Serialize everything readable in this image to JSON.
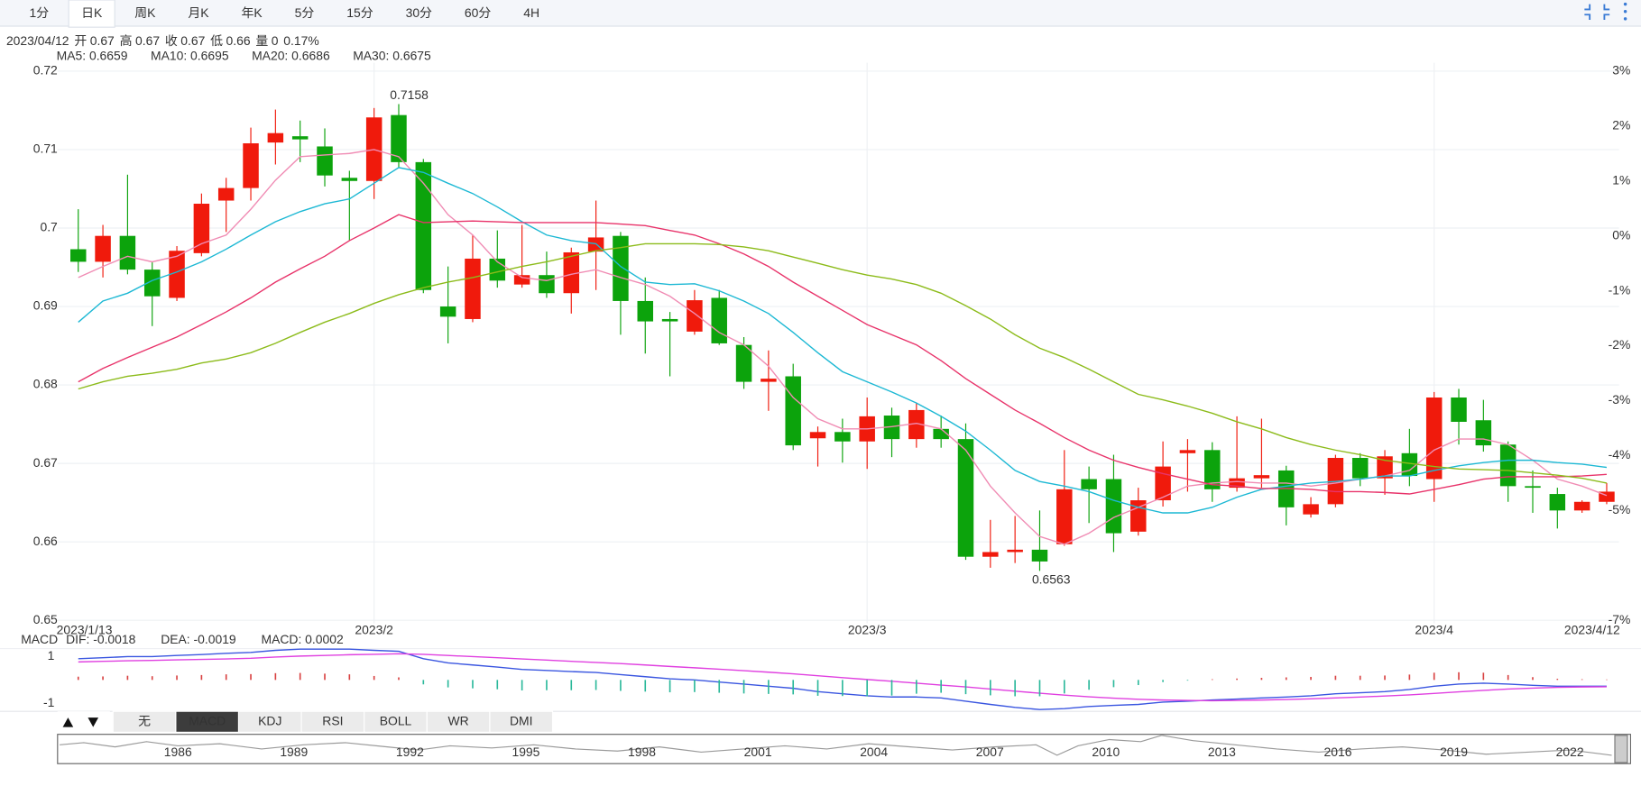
{
  "toolbar": {
    "tabs": [
      "1分",
      "日K",
      "周K",
      "月K",
      "年K",
      "5分",
      "15分",
      "30分",
      "60分",
      "4H"
    ],
    "active": 1
  },
  "info": {
    "date": "2023/04/12",
    "items": [
      {
        "label": "开",
        "value": "0.67",
        "color": "#0a9b0a"
      },
      {
        "label": "高",
        "value": "0.67",
        "color": "#e8201a"
      },
      {
        "label": "收",
        "value": "0.67",
        "color": "#e8201a"
      },
      {
        "label": "低",
        "value": "0.66",
        "color": "#0a9b0a"
      },
      {
        "label": "量",
        "value": "0",
        "color": "#333333"
      }
    ],
    "change": "0.17%",
    "change_color": "#e8201a"
  },
  "chart_data": [
    {
      "type": "candlestick",
      "categories": [
        "2023/1/13",
        null,
        null,
        null,
        null,
        null,
        null,
        null,
        null,
        null,
        null,
        null,
        "2023/2",
        null,
        null,
        null,
        null,
        null,
        null,
        null,
        null,
        null,
        null,
        null,
        null,
        null,
        null,
        null,
        null,
        null,
        null,
        null,
        "2023/3",
        null,
        null,
        null,
        null,
        null,
        null,
        null,
        null,
        null,
        null,
        null,
        null,
        null,
        null,
        null,
        null,
        null,
        null,
        null,
        null,
        null,
        null,
        "2023/4",
        null,
        null,
        null,
        null,
        null,
        null,
        "2023/4/12"
      ],
      "open": [
        0.6973,
        0.6957,
        0.699,
        0.6947,
        0.6911,
        0.6968,
        0.7035,
        0.7051,
        0.7109,
        0.7117,
        0.7104,
        0.7064,
        0.706,
        0.7144,
        0.7084,
        0.69,
        0.6884,
        0.6961,
        0.6928,
        0.694,
        0.6917,
        0.697,
        0.699,
        0.6907,
        0.6884,
        0.6868,
        0.6911,
        0.6851,
        0.6804,
        0.6811,
        0.6732,
        0.674,
        0.6728,
        0.6761,
        0.6731,
        0.6744,
        0.6731,
        0.6581,
        0.6587,
        0.659,
        0.6597,
        0.668,
        0.668,
        0.6613,
        0.6653,
        0.6713,
        0.6717,
        0.6669,
        0.6681,
        0.6691,
        0.6635,
        0.6648,
        0.6707,
        0.6681,
        0.6713,
        0.668,
        0.6784,
        0.6755,
        0.6724,
        0.6671,
        0.6661,
        0.664,
        0.6651
      ],
      "high": [
        0.7024,
        0.7004,
        0.7068,
        0.6957,
        0.6977,
        0.7044,
        0.7064,
        0.7128,
        0.7151,
        0.7137,
        0.7127,
        0.7073,
        0.7153,
        0.7158,
        0.7088,
        0.6951,
        0.6991,
        0.6997,
        0.7004,
        0.697,
        0.6975,
        0.7035,
        0.6995,
        0.6937,
        0.6893,
        0.6921,
        0.6921,
        0.6861,
        0.6844,
        0.6827,
        0.6747,
        0.6757,
        0.6784,
        0.6771,
        0.6777,
        0.6761,
        0.6751,
        0.6628,
        0.6633,
        0.664,
        0.6717,
        0.6696,
        0.6711,
        0.6669,
        0.6728,
        0.6731,
        0.6727,
        0.676,
        0.6757,
        0.6697,
        0.6657,
        0.6711,
        0.6713,
        0.6717,
        0.6744,
        0.6791,
        0.6795,
        0.6781,
        0.6728,
        0.6691,
        0.6669,
        0.6653,
        0.6675
      ],
      "low": [
        0.6944,
        0.6937,
        0.6941,
        0.6875,
        0.6907,
        0.6964,
        0.6995,
        0.7035,
        0.7081,
        0.7084,
        0.7053,
        0.6984,
        0.7037,
        0.7077,
        0.6917,
        0.6853,
        0.688,
        0.6924,
        0.6924,
        0.6911,
        0.6891,
        0.6921,
        0.6864,
        0.684,
        0.6811,
        0.6864,
        0.6851,
        0.6795,
        0.6767,
        0.6717,
        0.6696,
        0.6701,
        0.6693,
        0.6708,
        0.672,
        0.672,
        0.6577,
        0.6567,
        0.6573,
        0.6563,
        0.6595,
        0.6624,
        0.6587,
        0.6608,
        0.6645,
        0.6664,
        0.6651,
        0.6664,
        0.6669,
        0.6621,
        0.6631,
        0.6644,
        0.6671,
        0.666,
        0.6671,
        0.6651,
        0.6724,
        0.6715,
        0.6651,
        0.6637,
        0.6617,
        0.6637,
        0.6648
      ],
      "close": [
        0.6957,
        0.699,
        0.6947,
        0.6913,
        0.6971,
        0.7031,
        0.7051,
        0.7108,
        0.7121,
        0.7113,
        0.7067,
        0.706,
        0.7141,
        0.7084,
        0.6921,
        0.6887,
        0.6961,
        0.6933,
        0.694,
        0.6917,
        0.6969,
        0.6988,
        0.6907,
        0.6881,
        0.6881,
        0.6908,
        0.6853,
        0.6804,
        0.6808,
        0.6723,
        0.674,
        0.6728,
        0.676,
        0.6731,
        0.6768,
        0.6731,
        0.6581,
        0.6587,
        0.659,
        0.6575,
        0.6667,
        0.6667,
        0.6611,
        0.6653,
        0.6696,
        0.6717,
        0.6667,
        0.6681,
        0.6685,
        0.6644,
        0.6648,
        0.6707,
        0.6681,
        0.6709,
        0.6684,
        0.6784,
        0.6753,
        0.6723,
        0.6671,
        0.6669,
        0.664,
        0.6651,
        0.6664
      ],
      "up_color": "#f01a0c",
      "down_color": "#0ca30c",
      "high_label": "0.7158",
      "low_label": "0.6563",
      "series": [
        {
          "name": "MA5: 0.6659",
          "color": "#f08cb4",
          "values": [
            0.6937,
            0.6951,
            0.6964,
            0.6957,
            0.6964,
            0.698,
            0.6991,
            0.7024,
            0.7061,
            0.7091,
            0.7093,
            0.7095,
            0.71,
            0.7091,
            0.7057,
            0.7017,
            0.6991,
            0.6957,
            0.6937,
            0.6933,
            0.6941,
            0.6947,
            0.6937,
            0.6928,
            0.6913,
            0.6891,
            0.6867,
            0.6851,
            0.6824,
            0.6784,
            0.6757,
            0.6744,
            0.6744,
            0.6747,
            0.6751,
            0.6744,
            0.6717,
            0.6671,
            0.6637,
            0.6607,
            0.6597,
            0.6611,
            0.6631,
            0.6644,
            0.6657,
            0.6671,
            0.6675,
            0.6677,
            0.6675,
            0.6675,
            0.6671,
            0.6675,
            0.668,
            0.6684,
            0.6691,
            0.6717,
            0.6731,
            0.6731,
            0.6724,
            0.6704,
            0.668,
            0.6671,
            0.6659
          ]
        },
        {
          "name": "MA10: 0.6695",
          "color": "#1cb8d4",
          "values": [
            0.688,
            0.6907,
            0.6917,
            0.6933,
            0.6944,
            0.6957,
            0.6973,
            0.6991,
            0.7008,
            0.7021,
            0.7031,
            0.7037,
            0.7057,
            0.7077,
            0.7071,
            0.7057,
            0.7044,
            0.7027,
            0.7008,
            0.6991,
            0.6984,
            0.698,
            0.6951,
            0.6931,
            0.6928,
            0.6929,
            0.692,
            0.6907,
            0.6891,
            0.6867,
            0.6841,
            0.6817,
            0.6804,
            0.6791,
            0.6777,
            0.676,
            0.6741,
            0.6717,
            0.6691,
            0.6677,
            0.6671,
            0.6664,
            0.6653,
            0.6644,
            0.6637,
            0.6637,
            0.6644,
            0.6657,
            0.6667,
            0.6671,
            0.6675,
            0.6677,
            0.668,
            0.6684,
            0.6684,
            0.6691,
            0.6697,
            0.6701,
            0.6704,
            0.6704,
            0.6701,
            0.6699,
            0.6695
          ]
        },
        {
          "name": "MA20: 0.6686",
          "color": "#e8336a",
          "values": [
            0.6804,
            0.6821,
            0.6835,
            0.6848,
            0.6861,
            0.6877,
            0.6893,
            0.6911,
            0.6931,
            0.6948,
            0.6964,
            0.6984,
            0.7,
            0.7017,
            0.7007,
            0.7008,
            0.7009,
            0.7008,
            0.7007,
            0.7007,
            0.7007,
            0.7007,
            0.7005,
            0.7003,
            0.6997,
            0.6991,
            0.698,
            0.6967,
            0.6951,
            0.6931,
            0.6913,
            0.6895,
            0.6877,
            0.6864,
            0.6851,
            0.6831,
            0.6808,
            0.6788,
            0.6768,
            0.6751,
            0.6733,
            0.6717,
            0.6704,
            0.6695,
            0.6687,
            0.668,
            0.6673,
            0.6671,
            0.6668,
            0.6668,
            0.6667,
            0.6664,
            0.6664,
            0.6663,
            0.6661,
            0.6667,
            0.6673,
            0.668,
            0.6683,
            0.6683,
            0.6683,
            0.6684,
            0.6686
          ]
        },
        {
          "name": "MA30: 0.6675",
          "color": "#8cbb1a",
          "values": [
            0.6795,
            0.6804,
            0.6811,
            0.6815,
            0.682,
            0.6828,
            0.6833,
            0.6841,
            0.6853,
            0.6867,
            0.688,
            0.6891,
            0.6904,
            0.6915,
            0.6924,
            0.6931,
            0.6937,
            0.6944,
            0.6951,
            0.6957,
            0.6964,
            0.6971,
            0.6975,
            0.698,
            0.698,
            0.698,
            0.6979,
            0.6976,
            0.6971,
            0.6963,
            0.6955,
            0.6947,
            0.694,
            0.6935,
            0.6928,
            0.6917,
            0.6901,
            0.6884,
            0.6864,
            0.6847,
            0.6835,
            0.682,
            0.6804,
            0.6788,
            0.6781,
            0.6773,
            0.6764,
            0.6753,
            0.6744,
            0.6733,
            0.6724,
            0.6717,
            0.6711,
            0.6704,
            0.67,
            0.6696,
            0.6693,
            0.6692,
            0.6691,
            0.6688,
            0.6685,
            0.6681,
            0.6675
          ]
        }
      ],
      "ylim": [
        0.65,
        0.72
      ],
      "yticks": [
        0.72,
        0.71,
        0.7,
        0.69,
        0.68,
        0.67,
        0.66,
        0.65
      ],
      "y2lim": [
        -7,
        3
      ],
      "y2ticks": [
        {
          "value": 3,
          "label": "3%"
        },
        {
          "value": 2,
          "label": "2%"
        },
        {
          "value": 1,
          "label": "1%"
        },
        {
          "value": 0,
          "label": "0%"
        },
        {
          "value": -1,
          "label": "-1%"
        },
        {
          "value": -2,
          "label": "-2%"
        },
        {
          "value": -3,
          "label": "-3%"
        },
        {
          "value": -4,
          "label": "-4%"
        },
        {
          "value": -5,
          "label": "-5%"
        },
        {
          "value": -7,
          "label": "-7%"
        }
      ],
      "grid": true
    },
    {
      "type": "macd",
      "label": "MACD",
      "series": [
        {
          "name": "DIF: -0.0018",
          "color": "#3a56e0",
          "style": "line",
          "values": [
            0.91,
            0.95,
            1,
            1,
            1.05,
            1.09,
            1.14,
            1.18,
            1.27,
            1.32,
            1.32,
            1.32,
            1.27,
            1.23,
            0.91,
            0.73,
            0.64,
            0.55,
            0.45,
            0.41,
            0.36,
            0.32,
            0.23,
            0.14,
            0.05,
            0,
            -0.09,
            -0.18,
            -0.27,
            -0.36,
            -0.5,
            -0.59,
            -0.68,
            -0.73,
            -0.73,
            -0.77,
            -0.91,
            -1.05,
            -1.18,
            -1.27,
            -1.23,
            -1.14,
            -1.09,
            -1.05,
            -0.95,
            -0.91,
            -0.86,
            -0.82,
            -0.77,
            -0.73,
            -0.68,
            -0.59,
            -0.55,
            -0.5,
            -0.41,
            -0.27,
            -0.18,
            -0.14,
            -0.18,
            -0.23,
            -0.27,
            -0.27,
            -0.27
          ]
        },
        {
          "name": "DEA: -0.0019",
          "color": "#e040e0",
          "style": "line",
          "values": [
            0.77,
            0.8,
            0.82,
            0.84,
            0.86,
            0.88,
            0.9,
            0.93,
            0.98,
            1.02,
            1.05,
            1.08,
            1.1,
            1.12,
            1.1,
            1.05,
            1.0,
            0.95,
            0.9,
            0.85,
            0.8,
            0.75,
            0.7,
            0.64,
            0.58,
            0.52,
            0.46,
            0.4,
            0.33,
            0.26,
            0.18,
            0.1,
            0.02,
            -0.06,
            -0.14,
            -0.22,
            -0.3,
            -0.39,
            -0.48,
            -0.57,
            -0.65,
            -0.72,
            -0.78,
            -0.83,
            -0.86,
            -0.88,
            -0.89,
            -0.88,
            -0.86,
            -0.84,
            -0.81,
            -0.77,
            -0.73,
            -0.69,
            -0.64,
            -0.58,
            -0.51,
            -0.45,
            -0.39,
            -0.35,
            -0.32,
            -0.3,
            -0.29
          ]
        },
        {
          "name": "MACD: 0.0002",
          "color": "#c02a2a",
          "style": "bar",
          "up_color": "#d84040",
          "down_color": "#2ab89a",
          "values": [
            0.14,
            0.15,
            0.18,
            0.16,
            0.19,
            0.21,
            0.24,
            0.25,
            0.29,
            0.3,
            0.27,
            0.24,
            0.17,
            0.11,
            -0.19,
            -0.32,
            -0.36,
            -0.4,
            -0.45,
            -0.44,
            -0.44,
            -0.43,
            -0.47,
            -0.5,
            -0.53,
            -0.52,
            -0.55,
            -0.58,
            -0.6,
            -0.62,
            -0.68,
            -0.69,
            -0.7,
            -0.67,
            -0.59,
            -0.55,
            -0.61,
            -0.66,
            -0.7,
            -0.7,
            -0.58,
            -0.42,
            -0.31,
            -0.22,
            -0.09,
            -0.03,
            0.03,
            0.06,
            0.09,
            0.11,
            0.13,
            0.18,
            0.18,
            0.19,
            0.23,
            0.31,
            0.33,
            0.31,
            0.21,
            0.12,
            0.05,
            0.03,
            0.02
          ]
        }
      ],
      "ylim": [
        -1.3,
        1.3
      ],
      "yticks": [
        1,
        -1
      ]
    }
  ],
  "indicator_tabs": {
    "tabs": [
      "无",
      "MACD",
      "KDJ",
      "RSI",
      "BOLL",
      "WR",
      "DMI"
    ],
    "active": 1
  },
  "navigator": {
    "years": [
      "1986",
      "1989",
      "1992",
      "1995",
      "1998",
      "2001",
      "2004",
      "2007",
      "2010",
      "2013",
      "2016",
      "2019",
      "2022"
    ]
  }
}
